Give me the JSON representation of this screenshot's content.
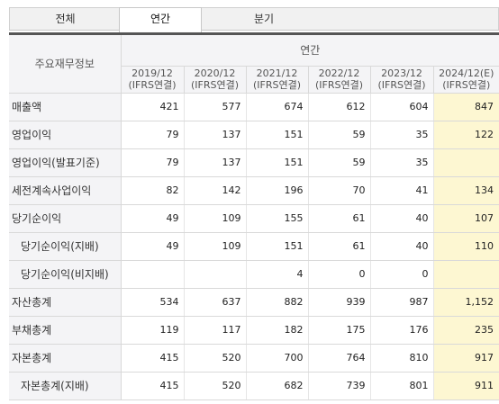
{
  "tabs": [
    {
      "label": "전체",
      "selected": false
    },
    {
      "label": "연간",
      "selected": true
    },
    {
      "label": "분기",
      "selected": false
    }
  ],
  "table": {
    "row_header_title": "주요재무정보",
    "group_header": "연간",
    "columns": [
      {
        "period": "2019/12",
        "basis": "(IFRS연결)"
      },
      {
        "period": "2020/12",
        "basis": "(IFRS연결)"
      },
      {
        "period": "2021/12",
        "basis": "(IFRS연결)"
      },
      {
        "period": "2022/12",
        "basis": "(IFRS연결)"
      },
      {
        "period": "2023/12",
        "basis": "(IFRS연결)"
      },
      {
        "period": "2024/12(E)",
        "basis": "(IFRS연결)"
      }
    ],
    "rows": [
      {
        "label": "매출액",
        "indent": false,
        "values": [
          "421",
          "577",
          "674",
          "612",
          "604",
          "847"
        ]
      },
      {
        "label": "영업이익",
        "indent": false,
        "values": [
          "79",
          "137",
          "151",
          "59",
          "35",
          "122"
        ]
      },
      {
        "label": "영업이익(발표기준)",
        "indent": false,
        "values": [
          "79",
          "137",
          "151",
          "59",
          "35",
          ""
        ]
      },
      {
        "label": "세전계속사업이익",
        "indent": false,
        "values": [
          "82",
          "142",
          "196",
          "70",
          "41",
          "134"
        ]
      },
      {
        "label": "당기순이익",
        "indent": false,
        "values": [
          "49",
          "109",
          "155",
          "61",
          "40",
          "107"
        ]
      },
      {
        "label": "당기순이익(지배)",
        "indent": true,
        "values": [
          "49",
          "109",
          "151",
          "61",
          "40",
          "110"
        ]
      },
      {
        "label": "당기순이익(비지배)",
        "indent": true,
        "values": [
          "",
          "",
          "4",
          "0",
          "0",
          ""
        ]
      },
      {
        "label": "자산총계",
        "indent": false,
        "values": [
          "534",
          "637",
          "882",
          "939",
          "987",
          "1,152"
        ]
      },
      {
        "label": "부채총계",
        "indent": false,
        "values": [
          "119",
          "117",
          "182",
          "175",
          "176",
          "235"
        ]
      },
      {
        "label": "자본총계",
        "indent": false,
        "values": [
          "415",
          "520",
          "700",
          "764",
          "810",
          "917"
        ]
      },
      {
        "label": "자본총계(지배)",
        "indent": true,
        "values": [
          "415",
          "520",
          "682",
          "739",
          "801",
          "911"
        ]
      }
    ]
  },
  "colors": {
    "header_bg": "#f4f4f6",
    "estimate_bg": "#fdf7d2",
    "top_rule": "#555555"
  }
}
